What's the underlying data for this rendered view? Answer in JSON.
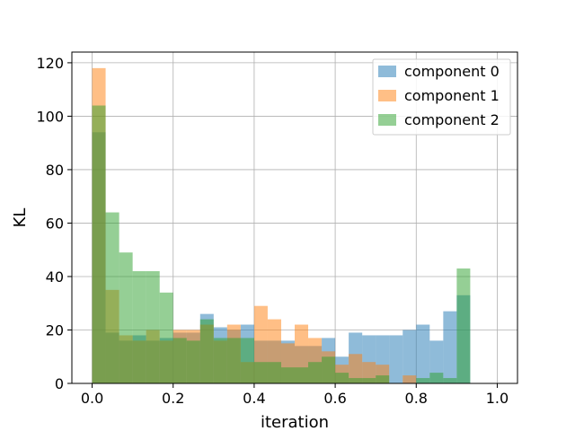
{
  "chart_data": {
    "type": "bar",
    "title": "",
    "xlabel": "iteration",
    "ylabel": "KL",
    "xlim": [
      -0.05,
      1.05
    ],
    "ylim": [
      0,
      124
    ],
    "grid": true,
    "legend_position": "top-right",
    "x_ticks": [
      0.0,
      0.2,
      0.4,
      0.6,
      0.8,
      1.0
    ],
    "x_tick_labels": [
      "0.0",
      "0.2",
      "0.4",
      "0.6",
      "0.8",
      "1.0"
    ],
    "y_ticks": [
      0,
      20,
      40,
      60,
      80,
      100,
      120
    ],
    "y_tick_labels": [
      "0",
      "20",
      "40",
      "60",
      "80",
      "100",
      "120"
    ],
    "bin_edges": [
      0.0,
      0.0333,
      0.0667,
      0.1,
      0.1333,
      0.1667,
      0.2,
      0.2333,
      0.2667,
      0.3,
      0.3333,
      0.3667,
      0.4,
      0.4333,
      0.4667,
      0.5,
      0.5333,
      0.5667,
      0.6,
      0.6333,
      0.6667,
      0.7,
      0.7333,
      0.7667,
      0.8,
      0.8333,
      0.8667,
      0.9,
      0.9333,
      0.9667,
      1.0
    ],
    "series": [
      {
        "name": "component 0",
        "color": "#1f77b4",
        "values": [
          94,
          19,
          16,
          18,
          16,
          17,
          19,
          19,
          26,
          21,
          20,
          22,
          16,
          16,
          16,
          14,
          14,
          17,
          10,
          19,
          18,
          18,
          18,
          20,
          22,
          16,
          27,
          33,
          0,
          0
        ]
      },
      {
        "name": "component 1",
        "color": "#ff7f0e",
        "values": [
          118,
          35,
          18,
          16,
          20,
          16,
          20,
          20,
          22,
          16,
          22,
          8,
          29,
          24,
          15,
          22,
          17,
          12,
          7,
          11,
          8,
          7,
          0,
          3,
          0,
          0,
          0,
          0,
          0,
          0
        ]
      },
      {
        "name": "component 2",
        "color": "#2ca02c",
        "values": [
          104,
          64,
          49,
          42,
          42,
          34,
          17,
          16,
          24,
          17,
          17,
          17,
          8,
          8,
          6,
          6,
          8,
          10,
          4,
          2,
          2,
          3,
          0,
          0,
          2,
          4,
          2,
          43,
          0,
          0
        ]
      }
    ]
  }
}
